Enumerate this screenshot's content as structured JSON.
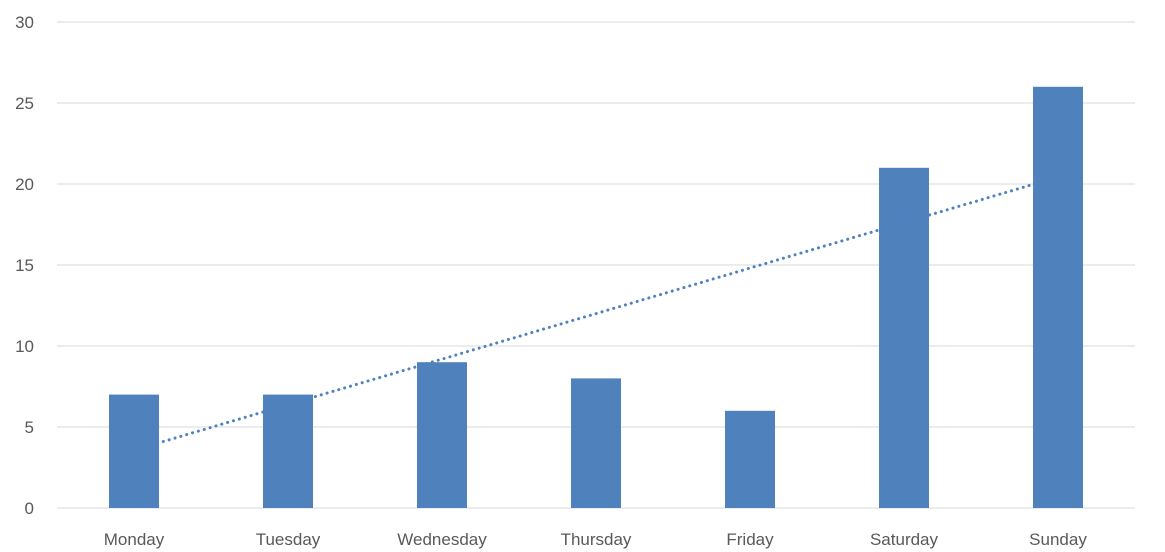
{
  "chart_data": {
    "type": "bar",
    "title": "",
    "xlabel": "",
    "ylabel": "",
    "categories": [
      "Monday",
      "Tuesday",
      "Wednesday",
      "Thursday",
      "Friday",
      "Saturday",
      "Sunday"
    ],
    "series": [
      {
        "values": [
          7,
          7,
          9,
          8,
          6,
          21,
          26
        ],
        "color": "#4f81bd"
      }
    ],
    "trendline": {
      "type": "linear",
      "style": "dotted",
      "color": "#4f81bd",
      "start": 3.57,
      "end": 20.43
    },
    "ylim": [
      0,
      30
    ],
    "yticks": [
      "0",
      "5",
      "10",
      "15",
      "20",
      "25",
      "30"
    ],
    "grid": true,
    "legend": "none"
  }
}
